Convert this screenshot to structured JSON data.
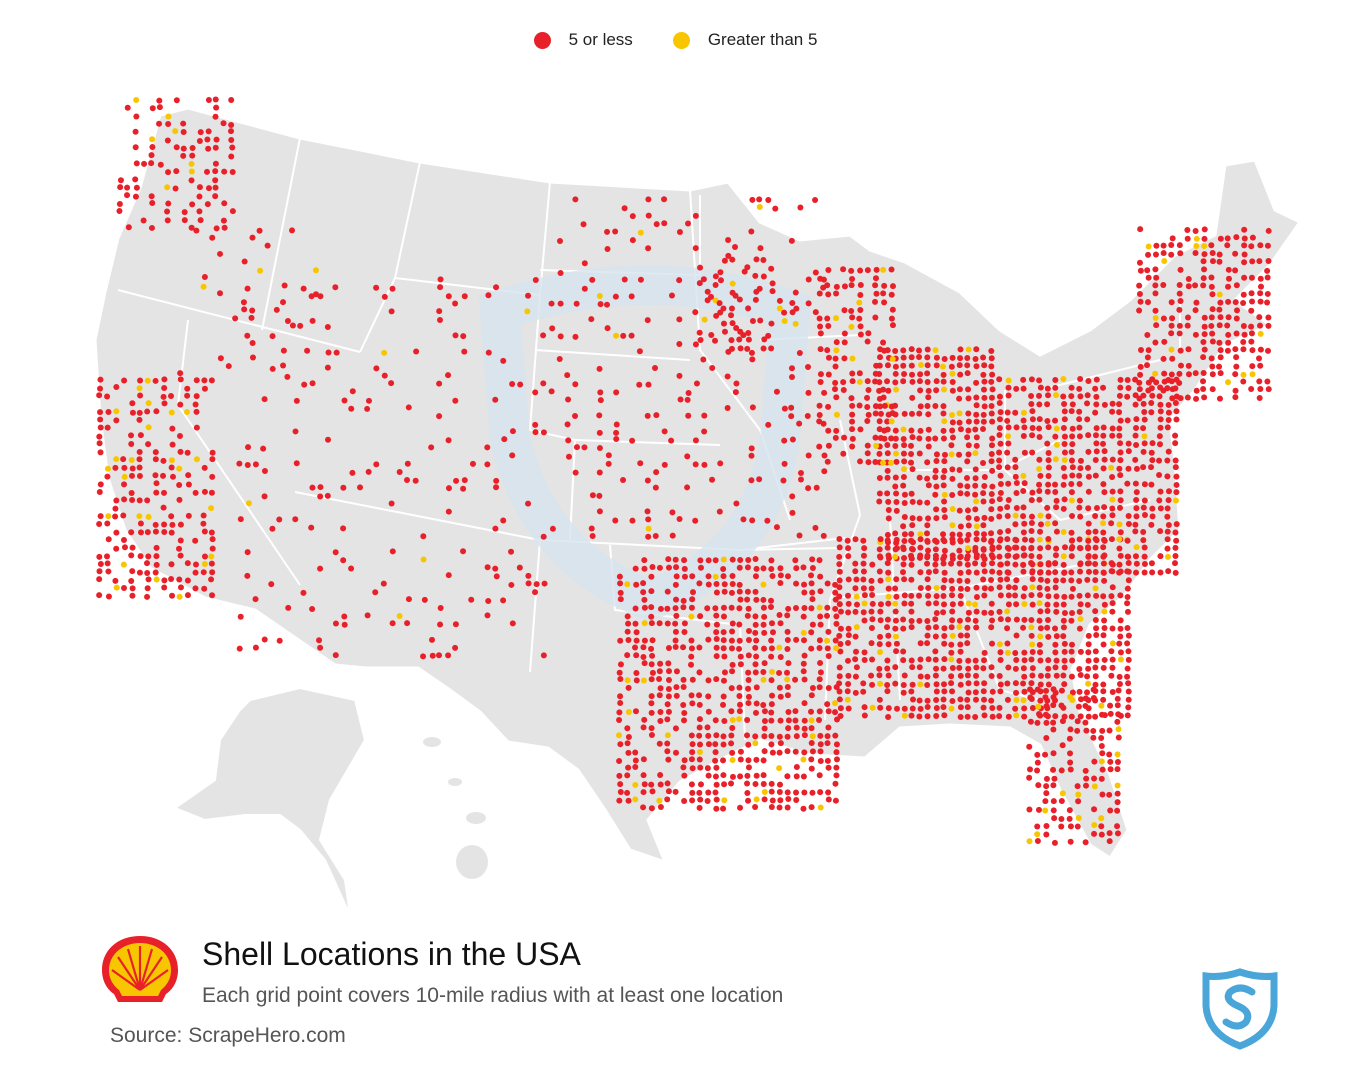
{
  "legend": [
    {
      "label": "5 or less",
      "color": "#e8202a"
    },
    {
      "label": "Greater than 5",
      "color": "#f7c600"
    }
  ],
  "title": "Shell Locations in the USA",
  "subtitle": "Each grid point covers 10-mile radius with at least one location",
  "source": "Source: ScrapeHero.com",
  "colors": {
    "land": "#e4e4e4",
    "borders": "#ffffff",
    "low": "#e8202a",
    "high": "#f7c600",
    "watermark": "#d6e4ee"
  },
  "icons": [
    "shell-logo-icon",
    "scrapehero-shield-icon"
  ]
}
